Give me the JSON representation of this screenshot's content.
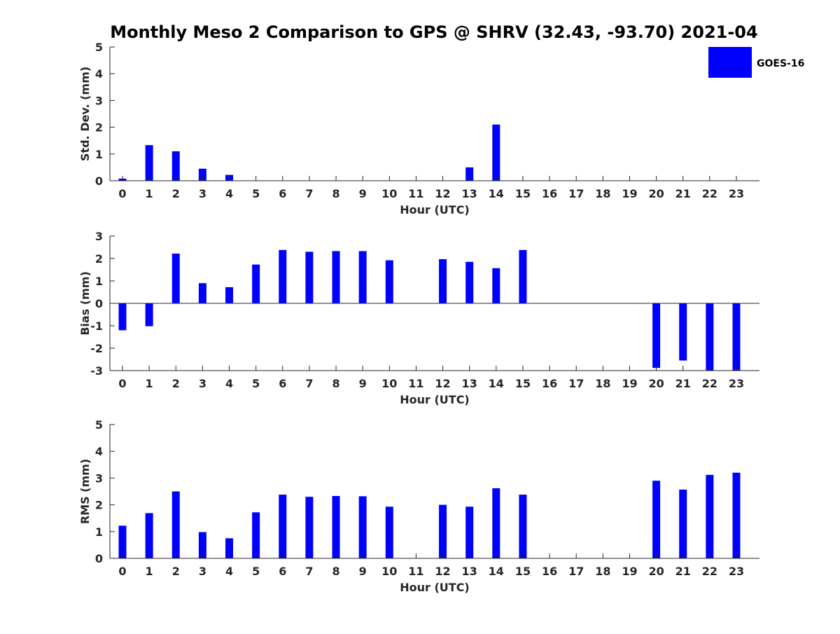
{
  "title": "Monthly Meso 2 Comparison to GPS @ SHRV (32.43, -93.70) 2021-04",
  "legend": {
    "label": "GOES-16",
    "color": "#0000ff",
    "placement": "top-right"
  },
  "chart_data": [
    {
      "type": "bar",
      "title": "Monthly Meso 2 Comparison to GPS @ SHRV (32.43, -93.70) 2021-04",
      "xlabel": "Hour (UTC)",
      "ylabel": "Std. Dev. (mm)",
      "categories": [
        "0",
        "1",
        "2",
        "3",
        "4",
        "5",
        "6",
        "7",
        "8",
        "9",
        "10",
        "11",
        "12",
        "13",
        "14",
        "15",
        "16",
        "17",
        "18",
        "19",
        "20",
        "21",
        "22",
        "23"
      ],
      "series": [
        {
          "name": "GOES-16",
          "color": "#0000ff",
          "values": [
            0.08,
            1.33,
            1.1,
            0.45,
            0.22,
            0,
            0,
            0,
            0,
            0,
            0,
            0,
            0,
            0.5,
            2.1,
            0,
            0,
            0,
            0,
            0,
            0,
            0,
            0,
            0
          ]
        }
      ],
      "ylim": [
        0,
        5
      ],
      "yticks": [
        0,
        1,
        2,
        3,
        4,
        5
      ],
      "grid": false
    },
    {
      "type": "bar",
      "xlabel": "Hour (UTC)",
      "ylabel": "Bias (mm)",
      "categories": [
        "0",
        "1",
        "2",
        "3",
        "4",
        "5",
        "6",
        "7",
        "8",
        "9",
        "10",
        "11",
        "12",
        "13",
        "14",
        "15",
        "16",
        "17",
        "18",
        "19",
        "20",
        "21",
        "22",
        "23"
      ],
      "series": [
        {
          "name": "GOES-16",
          "color": "#0000ff",
          "values": [
            -1.2,
            -1.02,
            2.22,
            0.9,
            0.72,
            1.73,
            2.38,
            2.3,
            2.33,
            2.33,
            1.92,
            0,
            1.97,
            1.85,
            1.57,
            2.38,
            0,
            0,
            0,
            0,
            -2.88,
            -2.55,
            -3.0,
            -3.0
          ]
        }
      ],
      "ylim": [
        -3,
        3
      ],
      "yticks": [
        -3,
        -2,
        -1,
        0,
        1,
        2,
        3
      ],
      "grid": false
    },
    {
      "type": "bar",
      "xlabel": "Hour (UTC)",
      "ylabel": "RMS (mm)",
      "categories": [
        "0",
        "1",
        "2",
        "3",
        "4",
        "5",
        "6",
        "7",
        "8",
        "9",
        "10",
        "11",
        "12",
        "13",
        "14",
        "15",
        "16",
        "17",
        "18",
        "19",
        "20",
        "21",
        "22",
        "23"
      ],
      "series": [
        {
          "name": "GOES-16",
          "color": "#0000ff",
          "values": [
            1.22,
            1.69,
            2.5,
            0.98,
            0.75,
            1.72,
            2.38,
            2.3,
            2.33,
            2.32,
            1.93,
            0,
            2.0,
            1.93,
            2.62,
            2.38,
            0,
            0,
            0,
            0,
            2.9,
            2.57,
            3.12,
            3.2
          ]
        }
      ],
      "ylim": [
        0,
        5
      ],
      "yticks": [
        0,
        1,
        2,
        3,
        4,
        5
      ],
      "grid": false
    }
  ]
}
